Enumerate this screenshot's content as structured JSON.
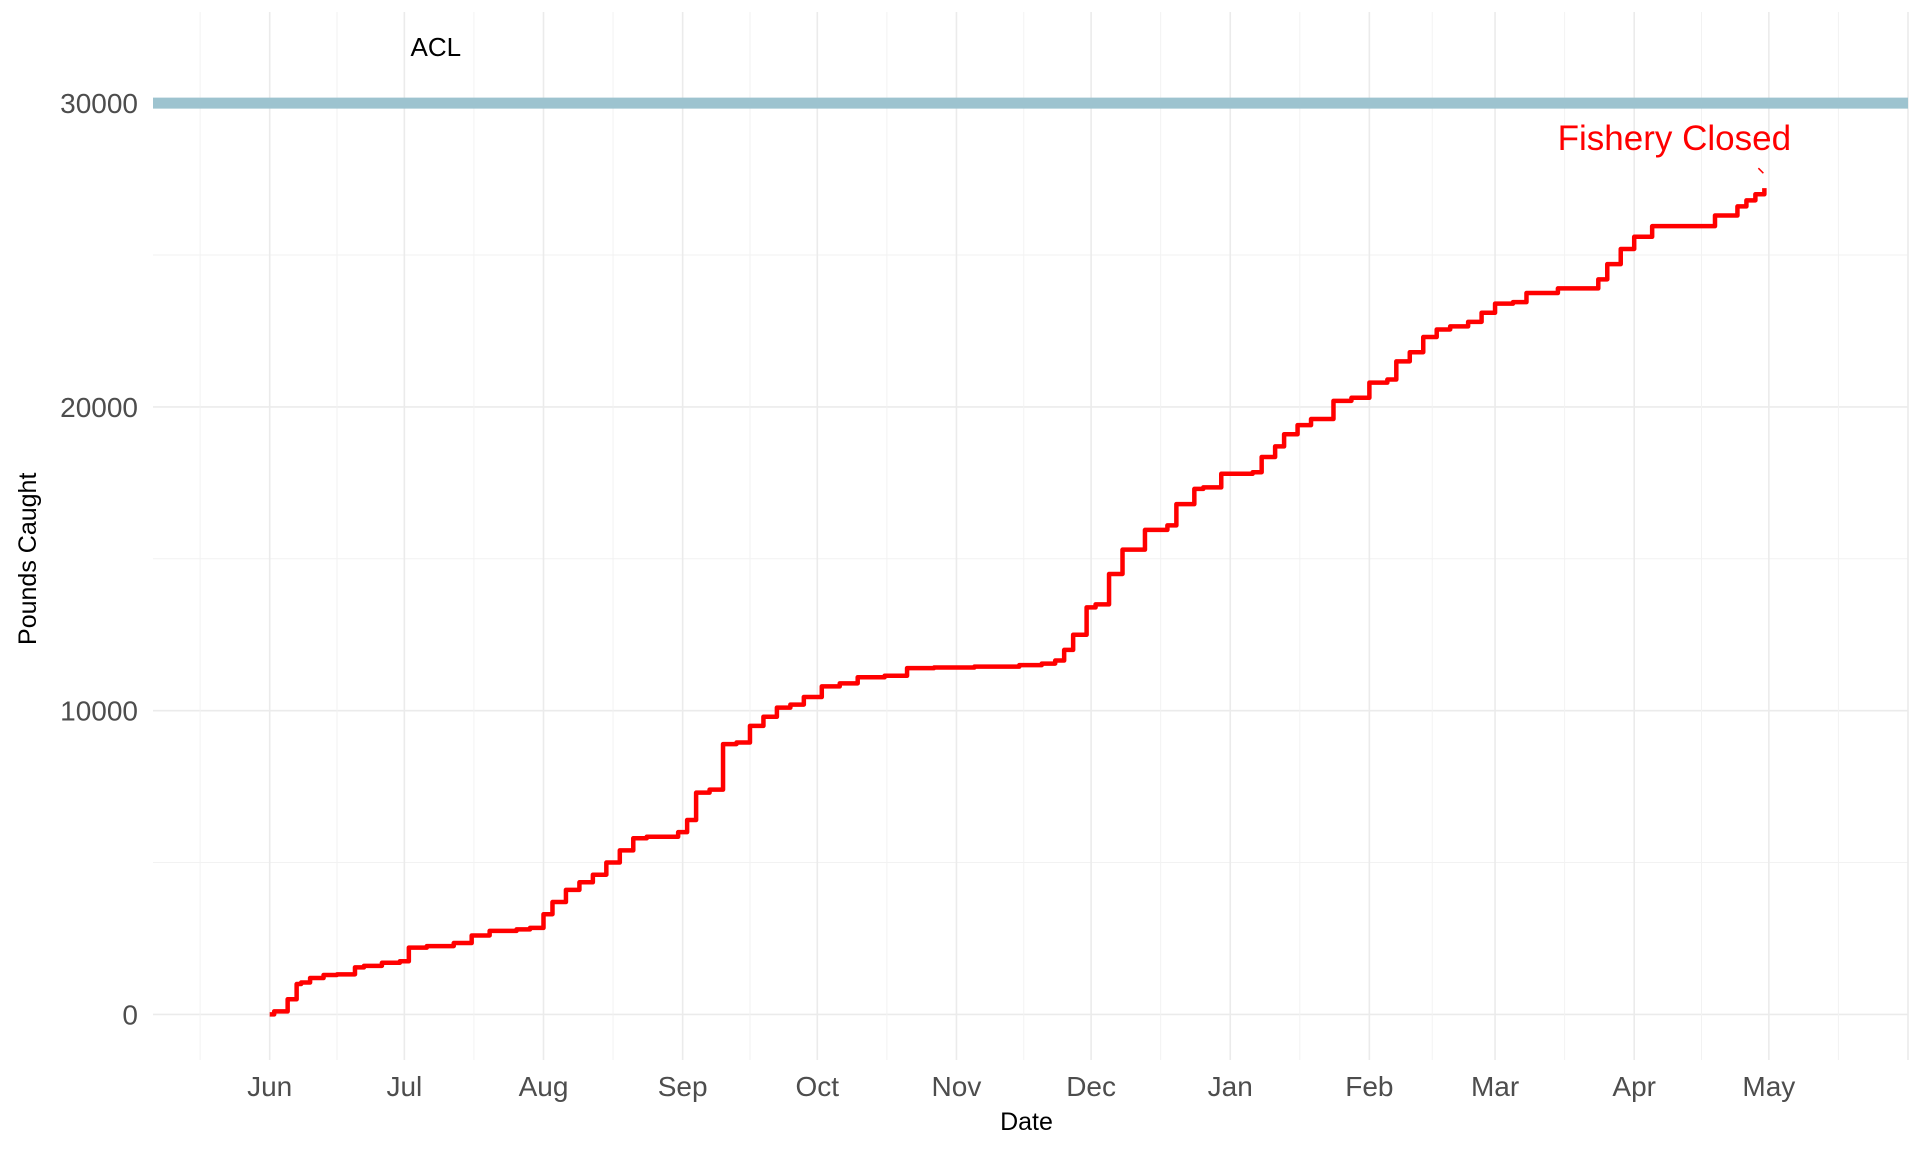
{
  "chart_data": {
    "type": "line",
    "title": "",
    "xlabel": "Date",
    "ylabel": "Pounds Caught",
    "x_tick_labels": [
      "Jun",
      "Jul",
      "Aug",
      "Sep",
      "Oct",
      "Nov",
      "Dec",
      "Jan",
      "Feb",
      "Mar",
      "Apr",
      "May"
    ],
    "y_ticks": [
      0,
      10000,
      20000,
      30000
    ],
    "y_tick_labels": [
      "0",
      "10000",
      "20000",
      "30000"
    ],
    "ylim": [
      -1500,
      33000
    ],
    "xlim": [
      "2022-05-06",
      "2023-06-01"
    ],
    "grid": true,
    "reference_line": {
      "label": "ACL",
      "value": 30000,
      "color": "#9dc3cf"
    },
    "annotation": {
      "text": "Fishery Closed",
      "x": "2023-04-30",
      "y": 27200,
      "color": "#ff0000"
    },
    "series": [
      {
        "color": "#ff0000",
        "x": [
          "2022-06-01",
          "2022-06-02",
          "2022-06-05",
          "2022-06-07",
          "2022-06-08",
          "2022-06-10",
          "2022-06-13",
          "2022-06-16",
          "2022-06-20",
          "2022-06-22",
          "2022-06-26",
          "2022-06-30",
          "2022-07-02",
          "2022-07-06",
          "2022-07-12",
          "2022-07-16",
          "2022-07-20",
          "2022-07-26",
          "2022-07-29",
          "2022-08-01",
          "2022-08-03",
          "2022-08-06",
          "2022-08-09",
          "2022-08-12",
          "2022-08-15",
          "2022-08-18",
          "2022-08-21",
          "2022-08-24",
          "2022-08-31",
          "2022-09-02",
          "2022-09-04",
          "2022-09-07",
          "2022-09-10",
          "2022-09-13",
          "2022-09-16",
          "2022-09-19",
          "2022-09-22",
          "2022-09-25",
          "2022-09-28",
          "2022-10-02",
          "2022-10-06",
          "2022-10-10",
          "2022-10-16",
          "2022-10-21",
          "2022-10-27",
          "2022-11-05",
          "2022-11-15",
          "2022-11-20",
          "2022-11-23",
          "2022-11-25",
          "2022-11-27",
          "2022-11-30",
          "2022-12-02",
          "2022-12-05",
          "2022-12-08",
          "2022-12-13",
          "2022-12-18",
          "2022-12-20",
          "2022-12-24",
          "2022-12-26",
          "2022-12-30",
          "2023-01-06",
          "2023-01-08",
          "2023-01-11",
          "2023-01-13",
          "2023-01-16",
          "2023-01-19",
          "2023-01-24",
          "2023-01-28",
          "2023-02-01",
          "2023-02-05",
          "2023-02-07",
          "2023-02-10",
          "2023-02-13",
          "2023-02-16",
          "2023-02-19",
          "2023-02-23",
          "2023-02-26",
          "2023-03-01",
          "2023-03-05",
          "2023-03-08",
          "2023-03-15",
          "2023-03-24",
          "2023-03-26",
          "2023-03-29",
          "2023-04-01",
          "2023-04-05",
          "2023-04-19",
          "2023-04-24",
          "2023-04-26",
          "2023-04-28",
          "2023-04-30"
        ],
        "y": [
          0,
          100,
          500,
          1000,
          1050,
          1200,
          1300,
          1320,
          1550,
          1600,
          1700,
          1750,
          2200,
          2250,
          2350,
          2600,
          2750,
          2800,
          2850,
          3300,
          3700,
          4100,
          4350,
          4600,
          5000,
          5400,
          5800,
          5850,
          6000,
          6400,
          7300,
          7400,
          8900,
          8950,
          9500,
          9800,
          10100,
          10200,
          10450,
          10800,
          10900,
          11100,
          11150,
          11400,
          11420,
          11450,
          11500,
          11550,
          11650,
          12000,
          12500,
          13400,
          13500,
          14500,
          15300,
          15950,
          16100,
          16800,
          17300,
          17350,
          17800,
          17850,
          18350,
          18700,
          19100,
          19400,
          19600,
          20200,
          20300,
          20800,
          20900,
          21500,
          21800,
          22300,
          22550,
          22650,
          22800,
          23100,
          23400,
          23450,
          23750,
          23900,
          24200,
          24700,
          25200,
          25600,
          25950,
          26300,
          26600,
          26800,
          27000,
          27200
        ]
      }
    ]
  }
}
